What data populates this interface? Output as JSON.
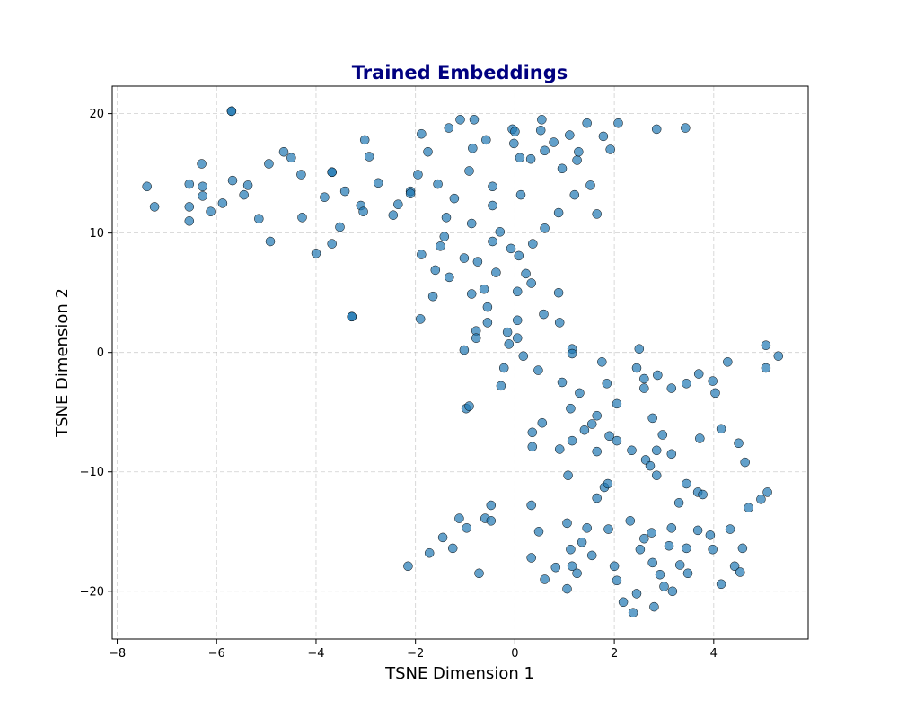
{
  "chart_data": {
    "type": "scatter",
    "title": "Trained Embeddings",
    "xlabel": "TSNE Dimension 1",
    "ylabel": "TSNE Dimension 2",
    "xlim": [
      -8.1,
      5.9
    ],
    "ylim": [
      -24.0,
      22.3
    ],
    "x_ticks": [
      -8,
      -6,
      -4,
      -2,
      0,
      2,
      4
    ],
    "y_ticks": [
      -20,
      -10,
      0,
      10,
      20
    ],
    "x_tick_labels": [
      "−8",
      "−6",
      "−4",
      "−2",
      "0",
      "2",
      "4"
    ],
    "y_tick_labels": [
      "−20",
      "−10",
      "0",
      "10",
      "20"
    ],
    "grid": true,
    "title_color": "#000080",
    "point_color": "#1f77b4",
    "point_alpha": 0.7,
    "points": [
      [
        -7.4,
        13.9
      ],
      [
        -7.25,
        12.2
      ],
      [
        -6.55,
        14.1
      ],
      [
        -6.55,
        12.2
      ],
      [
        -6.55,
        11.0
      ],
      [
        -6.3,
        15.8
      ],
      [
        -6.28,
        13.9
      ],
      [
        -6.28,
        13.1
      ],
      [
        -6.12,
        11.8
      ],
      [
        -5.88,
        12.5
      ],
      [
        -5.7,
        20.2
      ],
      [
        -5.7,
        20.2
      ],
      [
        -5.68,
        14.4
      ],
      [
        -5.45,
        13.2
      ],
      [
        -5.37,
        14.0
      ],
      [
        -5.15,
        11.2
      ],
      [
        -4.95,
        15.8
      ],
      [
        -4.92,
        9.3
      ],
      [
        -4.65,
        16.8
      ],
      [
        -4.5,
        16.3
      ],
      [
        -4.3,
        14.9
      ],
      [
        -4.28,
        11.3
      ],
      [
        -4.0,
        8.3
      ],
      [
        -3.83,
        13.0
      ],
      [
        -3.68,
        15.1
      ],
      [
        -3.68,
        15.1
      ],
      [
        -3.68,
        9.1
      ],
      [
        -3.52,
        10.5
      ],
      [
        -3.42,
        13.5
      ],
      [
        -3.28,
        3.0
      ],
      [
        -3.28,
        3.0
      ],
      [
        -3.1,
        12.3
      ],
      [
        -3.05,
        11.8
      ],
      [
        -3.02,
        17.8
      ],
      [
        -2.93,
        16.4
      ],
      [
        -2.75,
        14.2
      ],
      [
        -2.45,
        11.5
      ],
      [
        -2.35,
        12.4
      ],
      [
        -2.1,
        13.5
      ],
      [
        -2.1,
        13.3
      ],
      [
        -1.95,
        14.9
      ],
      [
        -1.88,
        18.3
      ],
      [
        -1.88,
        8.2
      ],
      [
        -1.9,
        2.8
      ],
      [
        -1.75,
        16.8
      ],
      [
        -1.65,
        4.7
      ],
      [
        -1.6,
        6.9
      ],
      [
        -1.55,
        14.1
      ],
      [
        -1.5,
        8.9
      ],
      [
        -1.42,
        9.7
      ],
      [
        -1.38,
        11.3
      ],
      [
        -1.33,
        18.8
      ],
      [
        -1.32,
        6.3
      ],
      [
        -1.22,
        12.9
      ],
      [
        -1.1,
        19.5
      ],
      [
        -1.02,
        7.9
      ],
      [
        -1.02,
        0.2
      ],
      [
        -0.98,
        -4.7
      ],
      [
        -0.92,
        -4.5
      ],
      [
        -0.92,
        15.2
      ],
      [
        -0.87,
        4.9
      ],
      [
        -0.87,
        10.8
      ],
      [
        -0.85,
        17.1
      ],
      [
        -0.82,
        19.5
      ],
      [
        -0.78,
        1.8
      ],
      [
        -0.78,
        1.2
      ],
      [
        -0.75,
        7.6
      ],
      [
        -0.62,
        5.3
      ],
      [
        -0.58,
        17.8
      ],
      [
        -0.55,
        3.8
      ],
      [
        -0.55,
        2.5
      ],
      [
        -0.45,
        13.9
      ],
      [
        -0.45,
        12.3
      ],
      [
        -0.45,
        9.3
      ],
      [
        -0.38,
        6.7
      ],
      [
        -0.3,
        10.1
      ],
      [
        -0.28,
        -2.8
      ],
      [
        -0.22,
        -1.3
      ],
      [
        -0.15,
        1.7
      ],
      [
        -0.12,
        0.7
      ],
      [
        -0.08,
        8.7
      ],
      [
        -0.05,
        18.7
      ],
      [
        -0.02,
        17.5
      ],
      [
        0.0,
        18.5
      ],
      [
        0.05,
        5.1
      ],
      [
        0.05,
        2.7
      ],
      [
        0.05,
        1.2
      ],
      [
        0.08,
        8.1
      ],
      [
        0.1,
        16.3
      ],
      [
        0.12,
        13.2
      ],
      [
        0.17,
        -0.3
      ],
      [
        0.22,
        6.6
      ],
      [
        0.32,
        16.2
      ],
      [
        0.33,
        5.8
      ],
      [
        0.36,
        9.1
      ],
      [
        0.47,
        -1.5
      ],
      [
        0.52,
        18.6
      ],
      [
        0.54,
        19.5
      ],
      [
        0.58,
        3.2
      ],
      [
        0.6,
        16.9
      ],
      [
        0.6,
        10.4
      ],
      [
        0.78,
        17.6
      ],
      [
        0.88,
        11.7
      ],
      [
        0.88,
        5.0
      ],
      [
        0.9,
        2.5
      ],
      [
        0.95,
        15.4
      ],
      [
        1.1,
        18.2
      ],
      [
        1.15,
        0.3
      ],
      [
        1.15,
        -0.1
      ],
      [
        1.2,
        13.2
      ],
      [
        1.25,
        16.1
      ],
      [
        1.28,
        16.8
      ],
      [
        1.45,
        19.2
      ],
      [
        1.52,
        14.0
      ],
      [
        1.65,
        11.6
      ],
      [
        1.78,
        18.1
      ],
      [
        1.92,
        17.0
      ],
      [
        2.08,
        19.2
      ],
      [
        2.85,
        18.7
      ],
      [
        3.43,
        18.8
      ],
      [
        0.95,
        -2.5
      ],
      [
        1.12,
        -4.7
      ],
      [
        1.15,
        -7.4
      ],
      [
        1.3,
        -3.4
      ],
      [
        1.4,
        -6.5
      ],
      [
        1.55,
        -6.0
      ],
      [
        1.65,
        -8.3
      ],
      [
        1.65,
        -5.3
      ],
      [
        1.75,
        -0.8
      ],
      [
        1.85,
        -2.6
      ],
      [
        1.9,
        -7.0
      ],
      [
        2.05,
        -4.3
      ],
      [
        2.05,
        -7.4
      ],
      [
        2.35,
        -8.2
      ],
      [
        2.45,
        -1.3
      ],
      [
        2.5,
        0.3
      ],
      [
        2.6,
        -2.2
      ],
      [
        2.6,
        -3.0
      ],
      [
        2.63,
        -9.0
      ],
      [
        2.72,
        -9.5
      ],
      [
        2.77,
        -5.5
      ],
      [
        2.85,
        -8.2
      ],
      [
        2.85,
        -10.3
      ],
      [
        2.87,
        -1.9
      ],
      [
        2.97,
        -6.9
      ],
      [
        3.15,
        -3.0
      ],
      [
        3.15,
        -8.5
      ],
      [
        3.45,
        -2.6
      ],
      [
        3.7,
        -1.8
      ],
      [
        3.72,
        -7.2
      ],
      [
        3.98,
        -2.4
      ],
      [
        4.03,
        -3.4
      ],
      [
        4.15,
        -6.4
      ],
      [
        4.28,
        -0.8
      ],
      [
        4.5,
        -7.6
      ],
      [
        4.63,
        -9.2
      ],
      [
        5.05,
        0.6
      ],
      [
        5.05,
        -1.3
      ],
      [
        5.3,
        -0.3
      ],
      [
        0.35,
        -6.7
      ],
      [
        0.35,
        -7.9
      ],
      [
        0.55,
        -5.9
      ],
      [
        0.9,
        -8.1
      ],
      [
        1.07,
        -10.3
      ],
      [
        1.65,
        -12.2
      ],
      [
        1.8,
        -11.3
      ],
      [
        1.87,
        -11.0
      ],
      [
        3.3,
        -12.6
      ],
      [
        3.45,
        -11.0
      ],
      [
        3.68,
        -11.7
      ],
      [
        3.78,
        -11.9
      ],
      [
        4.95,
        -12.3
      ],
      [
        5.08,
        -11.7
      ],
      [
        4.7,
        -13.0
      ],
      [
        -2.15,
        -17.9
      ],
      [
        -1.72,
        -16.8
      ],
      [
        -1.45,
        -15.5
      ],
      [
        -1.25,
        -16.4
      ],
      [
        -1.12,
        -13.9
      ],
      [
        -0.97,
        -14.7
      ],
      [
        -0.72,
        -18.5
      ],
      [
        -0.6,
        -13.9
      ],
      [
        -0.48,
        -12.8
      ],
      [
        -0.48,
        -14.1
      ],
      [
        0.33,
        -12.8
      ],
      [
        0.33,
        -17.2
      ],
      [
        0.48,
        -15.0
      ],
      [
        0.6,
        -19.0
      ],
      [
        0.82,
        -18.0
      ],
      [
        1.05,
        -14.3
      ],
      [
        1.05,
        -19.8
      ],
      [
        1.12,
        -16.5
      ],
      [
        1.15,
        -17.9
      ],
      [
        1.25,
        -18.5
      ],
      [
        1.35,
        -15.9
      ],
      [
        1.45,
        -14.7
      ],
      [
        1.55,
        -17.0
      ],
      [
        1.88,
        -14.8
      ],
      [
        2.0,
        -17.9
      ],
      [
        2.05,
        -19.1
      ],
      [
        2.18,
        -20.9
      ],
      [
        2.32,
        -14.1
      ],
      [
        2.38,
        -21.8
      ],
      [
        2.45,
        -20.2
      ],
      [
        2.52,
        -16.5
      ],
      [
        2.6,
        -15.6
      ],
      [
        2.75,
        -15.1
      ],
      [
        2.77,
        -17.6
      ],
      [
        2.8,
        -21.3
      ],
      [
        2.92,
        -18.6
      ],
      [
        3.0,
        -19.6
      ],
      [
        3.1,
        -16.2
      ],
      [
        3.15,
        -14.7
      ],
      [
        3.17,
        -20.0
      ],
      [
        3.32,
        -17.8
      ],
      [
        3.45,
        -16.4
      ],
      [
        3.48,
        -18.5
      ],
      [
        3.68,
        -14.9
      ],
      [
        3.93,
        -15.3
      ],
      [
        3.98,
        -16.5
      ],
      [
        4.15,
        -19.4
      ],
      [
        4.33,
        -14.8
      ],
      [
        4.42,
        -17.9
      ],
      [
        4.53,
        -18.4
      ],
      [
        4.58,
        -16.4
      ]
    ]
  }
}
